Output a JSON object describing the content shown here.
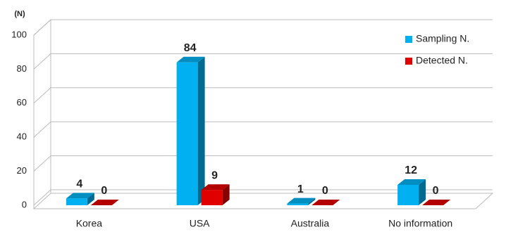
{
  "chart_data": {
    "type": "bar3d",
    "y_label": "(N)",
    "categories": [
      "Korea",
      "USA",
      "Australia",
      "No information"
    ],
    "series": [
      {
        "name": "Sampling N.",
        "color": "#00b0f0",
        "values": [
          4,
          84,
          1,
          12
        ]
      },
      {
        "name": "Detected N.",
        "color": "#e00000",
        "values": [
          0,
          9,
          0,
          0
        ]
      }
    ],
    "ylim": [
      0,
      100
    ],
    "yticks": [
      0,
      20,
      40,
      60,
      80,
      100
    ],
    "grid": true,
    "legend": "top-right"
  }
}
